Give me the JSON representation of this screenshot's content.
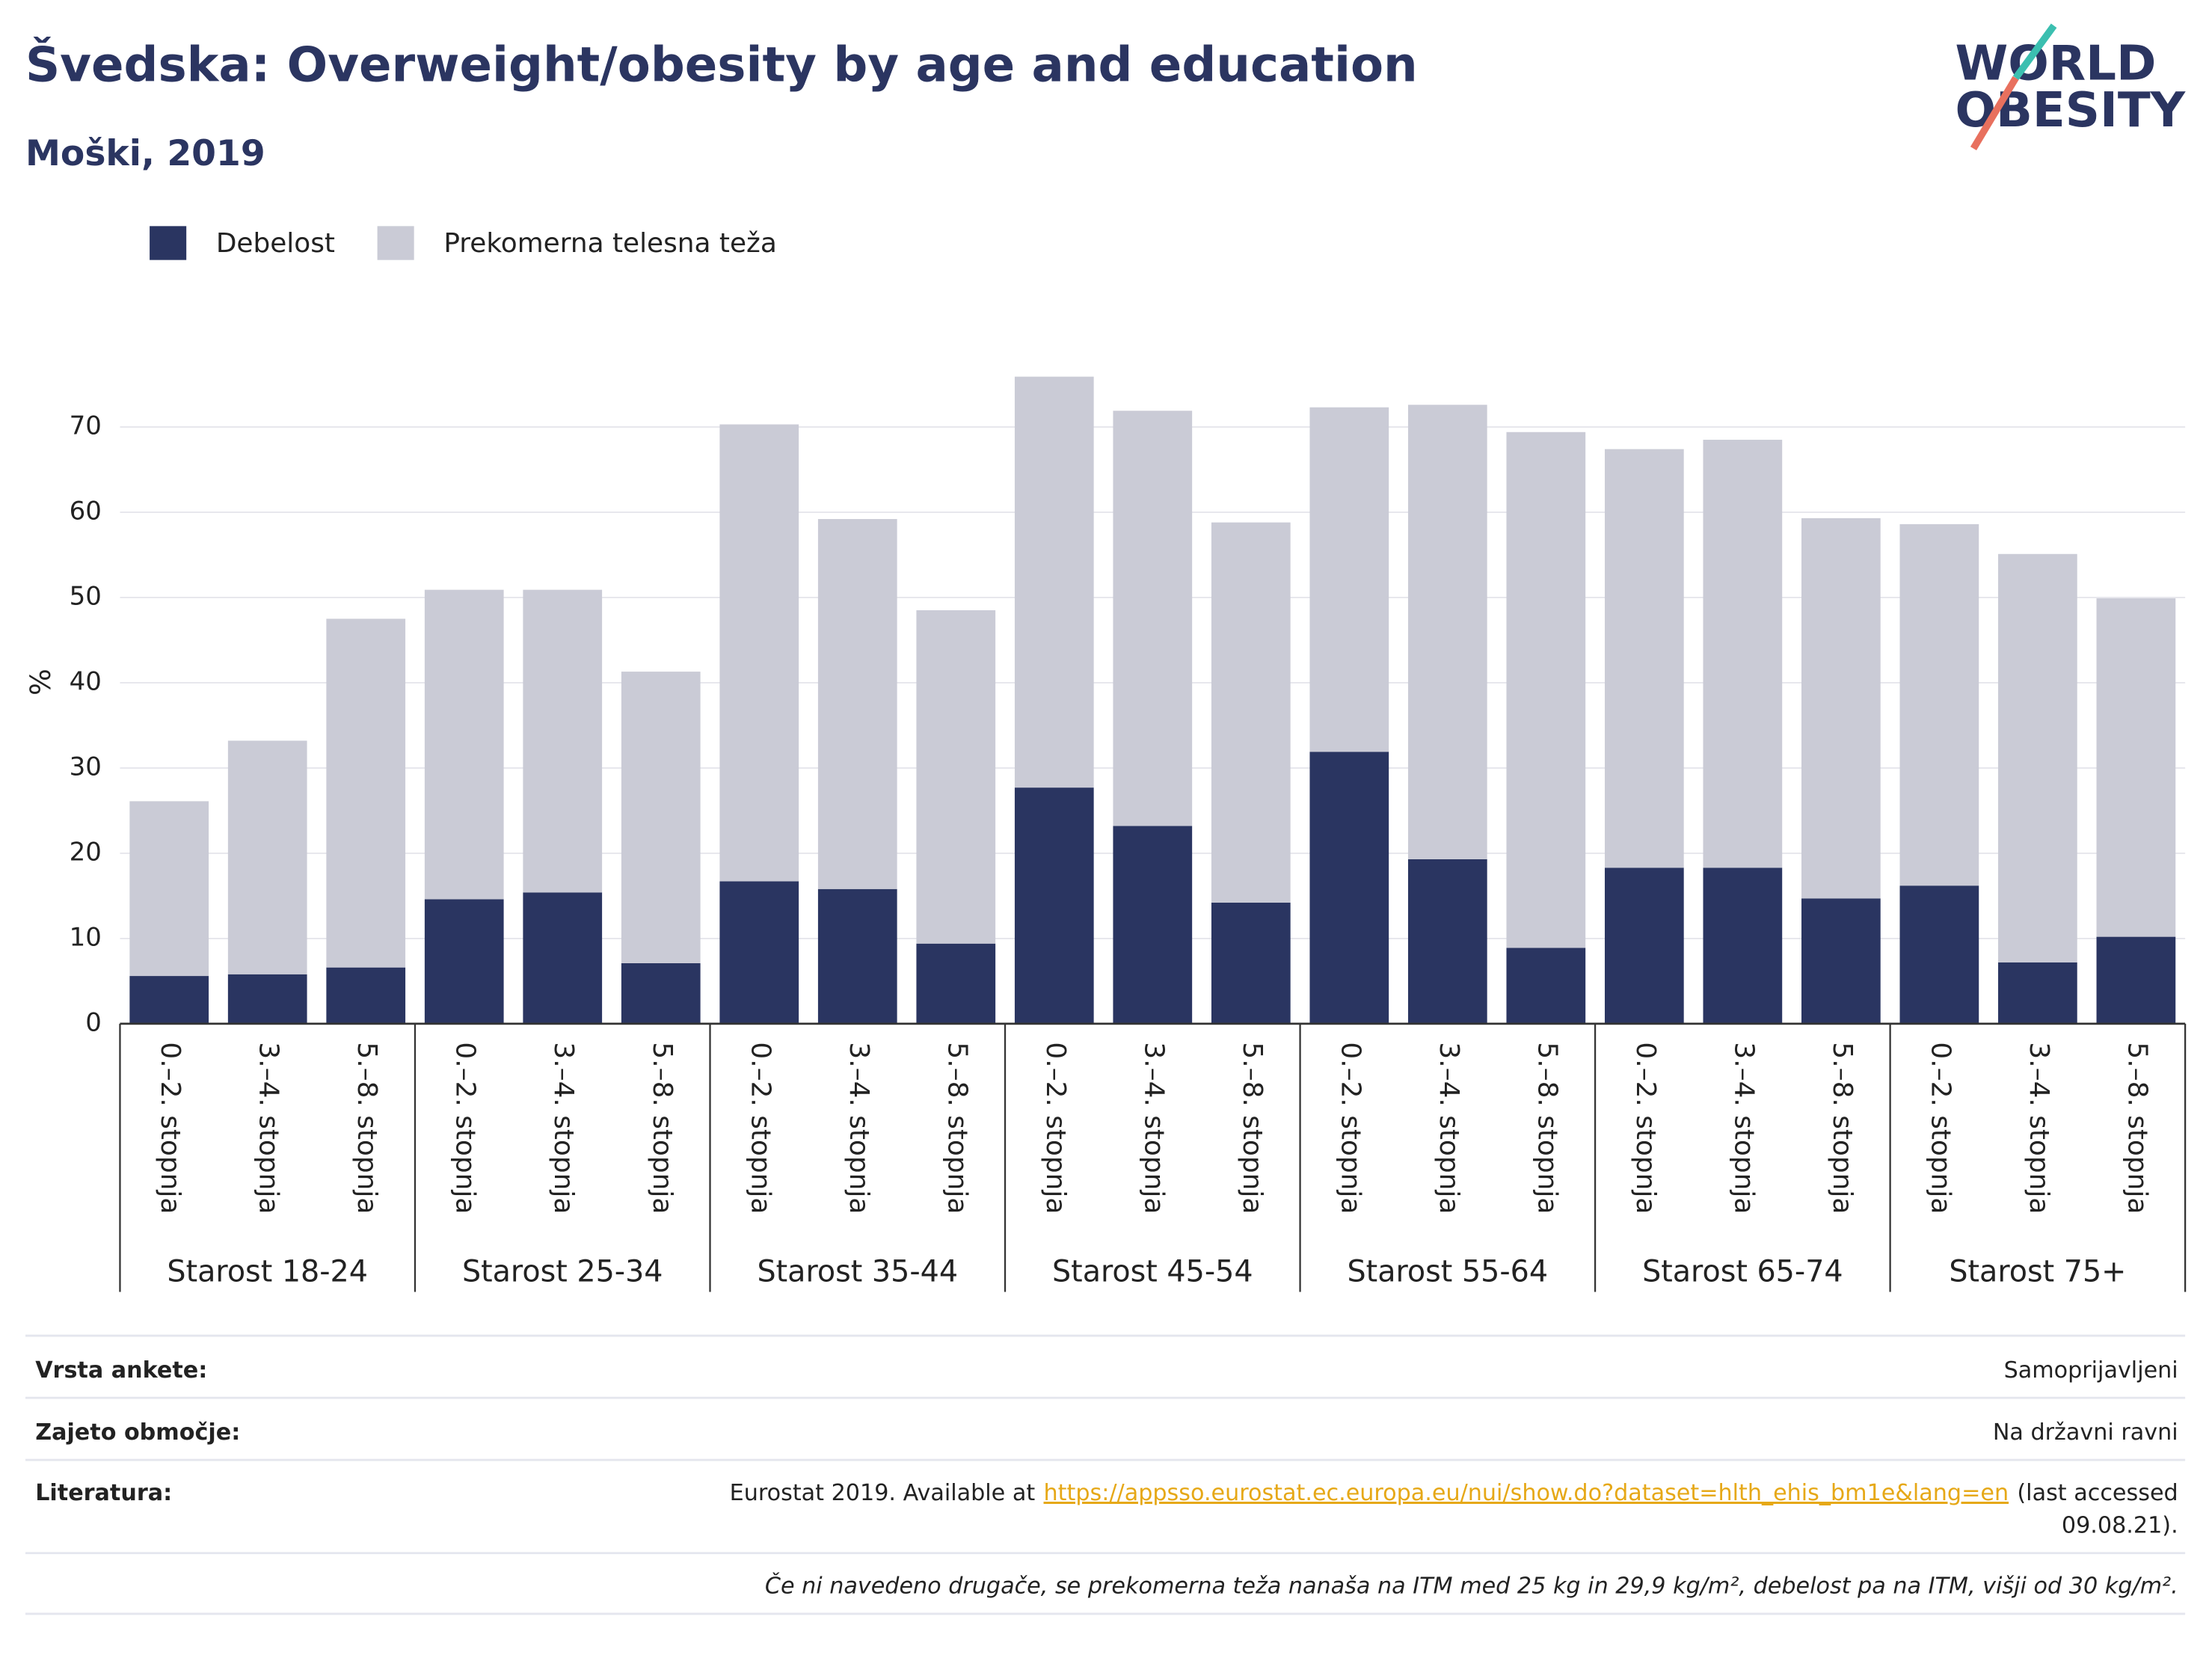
{
  "chart_data": {
    "type": "stacked_bar",
    "title": "Švedska: Overweight/obesity by age and education",
    "subtitle": "Moški, 2019",
    "y_label": "%",
    "logo": [
      "WORLD",
      "OBESITY"
    ],
    "categories": [
      "0.–2. stopnja",
      "3.–4. stopnja",
      "5.–8. stopnja",
      "0.–2. stopnja",
      "3.–4. stopnja",
      "5.–8. stopnja",
      "0.–2. stopnja",
      "3.–4. stopnja",
      "5.–8. stopnja",
      "0.–2. stopnja",
      "3.–4. stopnja",
      "5.–8. stopnja",
      "0.–2. stopnja",
      "3.–4. stopnja",
      "5.–8. stopnja",
      "0.–2. stopnja",
      "3.–4. stopnja",
      "5.–8. stopnja",
      "0.–2. stopnja",
      "3.–4. stopnja",
      "5.–8. stopnja"
    ],
    "groups": [
      "Starost 18-24",
      "Starost 25-34",
      "Starost 35-44",
      "Starost 45-54",
      "Starost 55-64",
      "Starost 65-74",
      "Starost 75+"
    ],
    "series": [
      {
        "name": "Debelost",
        "color": "#2a3561",
        "values": [
          5.6,
          5.8,
          6.6,
          14.6,
          15.4,
          7.1,
          16.7,
          15.8,
          9.4,
          27.7,
          23.2,
          14.2,
          31.9,
          19.3,
          8.9,
          18.3,
          18.3,
          14.7,
          16.2,
          7.2,
          10.2
        ]
      },
      {
        "name": "Prekomerna telesna teža",
        "color": "#cacbd6",
        "values": [
          20.5,
          27.4,
          40.9,
          36.3,
          35.5,
          34.2,
          53.6,
          43.4,
          39.1,
          48.2,
          48.7,
          44.6,
          40.4,
          53.3,
          60.5,
          49.1,
          50.2,
          44.6,
          42.4,
          47.9,
          39.7
        ]
      }
    ],
    "ylim": [
      0,
      77
    ],
    "yticks": [
      0,
      10,
      20,
      30,
      40,
      50,
      60,
      70
    ],
    "grid": true,
    "legend": "top-left"
  },
  "footer": {
    "rows": [
      {
        "label": "Vrsta ankete:",
        "value": "Samoprijavljeni"
      },
      {
        "label": "Zajeto območje:",
        "value": "Na državni ravni"
      }
    ],
    "literature": {
      "label": "Literatura:",
      "before": "Eurostat 2019. Available at",
      "link": "https://appsso.eurostat.ec.europa.eu/nui/show.do?dataset=hlth_ehis_bm1e&lang=en",
      "after": [
        "(last accessed",
        "09.08.21)."
      ]
    },
    "note": "Če ni navedeno drugače, se prekomerna teža nanaša na ITM med 25 kg in 29,9 kg/m², debelost pa na ITM, višji od 30 kg/m²."
  }
}
